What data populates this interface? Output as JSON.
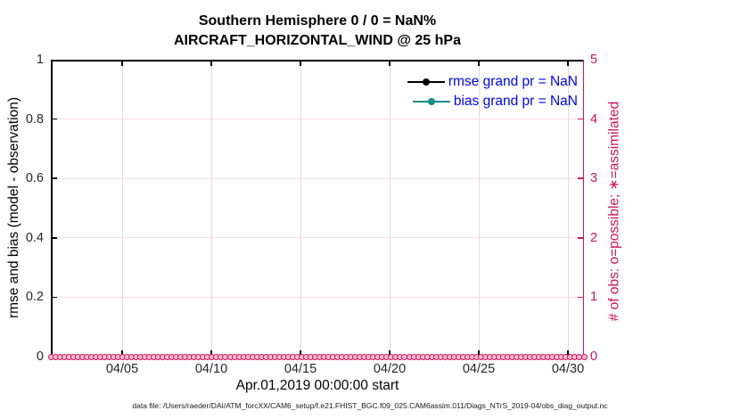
{
  "title": {
    "line1": "Southern Hemisphere 0 / 0 = NaN%",
    "line2": "AIRCRAFT_HORIZONTAL_WIND @ 25 hPa"
  },
  "axis_labels": {
    "left": "rmse and bias (model - observation)",
    "right": "# of obs: o=possible; ∗=assimilated",
    "x": "Apr.01,2019 00:00:00 start"
  },
  "legend": {
    "text_color": "#0000ff",
    "items": [
      {
        "label": "rmse grand pr = NaN",
        "color": "#000000"
      },
      {
        "label": "bias grand pr = NaN",
        "color": "#0d8e89"
      }
    ]
  },
  "caption": "data file: /Users/raeder/DAI/ATM_forcXX/CAM6_setup/f.e21.FHIST_BGC.f09_025.CAM6assim.011/Diags_NTrS_2019-04/obs_diag_output.nc",
  "colors": {
    "left_axis": "#000000",
    "right_axis": "#d1135b",
    "grid_vertical": "#dcdcdc",
    "grid_horizontal": "#f6dce7",
    "tick_label": "#262626",
    "marker_edge": "#d1135b",
    "marker_fill": "#f6bed3"
  },
  "chart_data": {
    "type": "line",
    "title": "Southern Hemisphere 0 / 0 = NaN%",
    "subtitle": "AIRCRAFT_HORIZONTAL_WIND @ 25 hPa",
    "xlabel": "Apr.01,2019 00:00:00 start",
    "ylabel_left": "rmse and bias (model - observation)",
    "ylabel_right": "# of obs: o=possible; ∗=assimilated",
    "grid": true,
    "legend_position": "upper right",
    "x_axis": {
      "start": "Apr.01,2019 00:00:00",
      "tick_labels": [
        "04/05",
        "04/10",
        "04/15",
        "04/20",
        "04/25",
        "04/30"
      ],
      "tick_days": [
        4,
        9,
        14,
        19,
        24,
        29
      ],
      "range_days": [
        0,
        29.9
      ]
    },
    "y_left": {
      "lim": [
        0,
        1
      ],
      "ticks": [
        0,
        0.2,
        0.4,
        0.6,
        0.8,
        1
      ],
      "tick_labels": [
        "0",
        "0.2",
        "0.4",
        "0.6",
        "0.8",
        "1"
      ]
    },
    "y_right": {
      "lim": [
        0,
        5
      ],
      "ticks": [
        0,
        1,
        2,
        3,
        4,
        5
      ],
      "tick_labels": [
        "0",
        "1",
        "2",
        "3",
        "4",
        "5"
      ]
    },
    "series": [
      {
        "name": "rmse grand pr = NaN",
        "color": "#000000",
        "marker": "filled-circle",
        "all_nan": true,
        "values": []
      },
      {
        "name": "bias grand pr = NaN",
        "color": "#0d8e89",
        "marker": "filled-circle",
        "all_nan": true,
        "values": []
      },
      {
        "name": "# of obs possible (o)",
        "color": "#d1135b",
        "marker": "o",
        "constant_value": 0,
        "n_points": 120
      },
      {
        "name": "# of obs assimilated (∗)",
        "color": "#d1135b",
        "marker": "∗",
        "constant_value": 0,
        "n_points": 120
      }
    ],
    "stats": {
      "obs_possible": 0,
      "obs_assimilated": 0,
      "percent_assimilated": "NaN"
    }
  }
}
